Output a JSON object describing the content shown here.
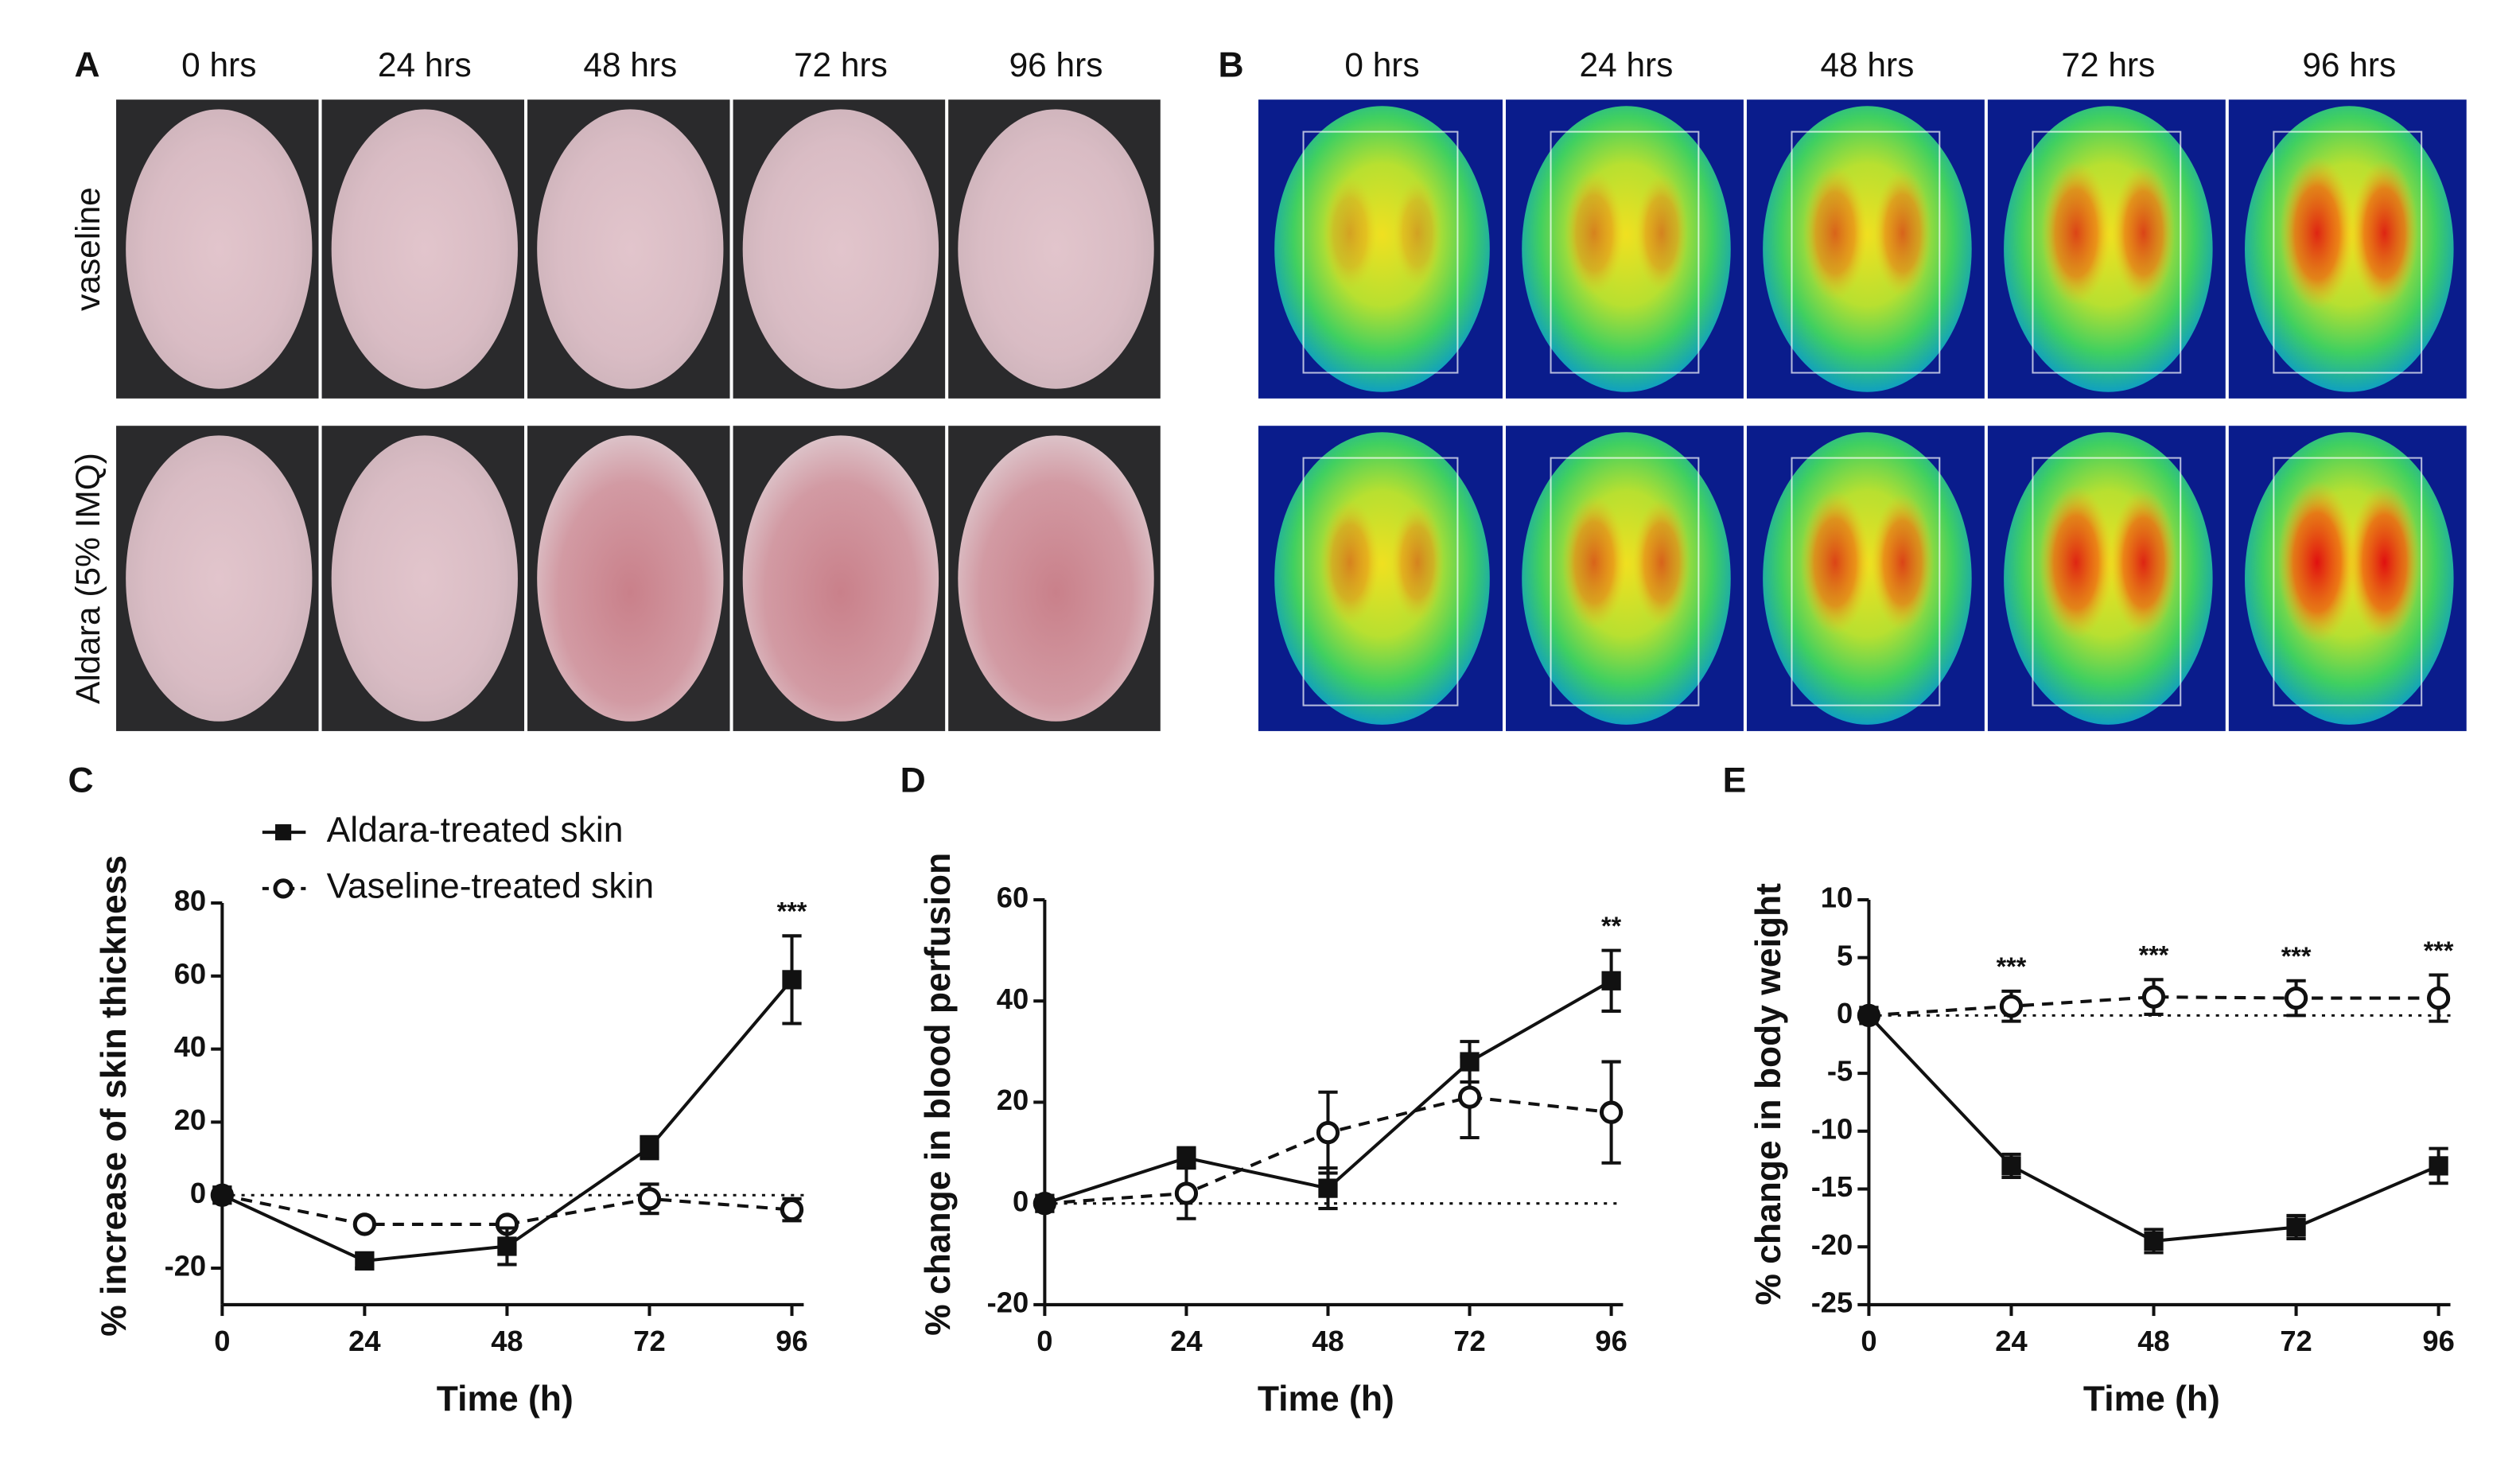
{
  "panel_a": {
    "label": "A",
    "columns": [
      "0 hrs",
      "24 hrs",
      "48 hrs",
      "72 hrs",
      "96 hrs"
    ],
    "rows": [
      "vaseline",
      "Aldara (5% IMQ)"
    ]
  },
  "panel_b": {
    "label": "B",
    "columns": [
      "0 hrs",
      "24 hrs",
      "48 hrs",
      "72 hrs",
      "96 hrs"
    ]
  },
  "chart_data": [
    {
      "type": "line",
      "panel": "C",
      "ylabel": "% increase of skin thickness",
      "xlabel": "Time (h)",
      "x": [
        0,
        24,
        48,
        72,
        96
      ],
      "xlim": [
        0,
        98
      ],
      "xticks": [
        0,
        24,
        48,
        72,
        96
      ],
      "ylim": [
        -30,
        80
      ],
      "yticks": [
        -20,
        0,
        20,
        40,
        60,
        80
      ],
      "zero_line": true,
      "legend": true,
      "series": [
        {
          "name": "Aldara-treated skin",
          "color": "#111111",
          "marker": "square",
          "dashed": false,
          "values": [
            0,
            -18,
            -14,
            13,
            59
          ],
          "errors": [
            0,
            2,
            5,
            3,
            12
          ]
        },
        {
          "name": "Vaseline-treated skin",
          "color": "#111111",
          "marker": "circle",
          "dashed": true,
          "values": [
            0,
            -8,
            -8,
            -1,
            -4
          ],
          "errors": [
            0,
            1,
            1,
            4,
            3
          ]
        }
      ],
      "annotations": [
        {
          "x": 96,
          "text": "***"
        }
      ]
    },
    {
      "type": "line",
      "panel": "D",
      "ylabel": "% change in blood perfusion",
      "xlabel": "Time (h)",
      "x": [
        0,
        24,
        48,
        72,
        96
      ],
      "xlim": [
        0,
        98
      ],
      "xticks": [
        0,
        24,
        48,
        72,
        96
      ],
      "ylim": [
        -20,
        60
      ],
      "yticks": [
        -20,
        0,
        20,
        40,
        60
      ],
      "zero_line": true,
      "legend": false,
      "series": [
        {
          "color": "#111111",
          "marker": "square",
          "dashed": false,
          "values": [
            0,
            9,
            3,
            28,
            44
          ],
          "errors": [
            0,
            2,
            4,
            4,
            6
          ]
        },
        {
          "color": "#111111",
          "marker": "circle",
          "dashed": true,
          "values": [
            0,
            2,
            14,
            21,
            18
          ],
          "errors": [
            0,
            5,
            8,
            8,
            10
          ]
        }
      ],
      "annotations": [
        {
          "x": 96,
          "text": "**"
        }
      ]
    },
    {
      "type": "line",
      "panel": "E",
      "ylabel": "% change in body weight",
      "xlabel": "Time (h)",
      "x": [
        0,
        24,
        48,
        72,
        96
      ],
      "xlim": [
        0,
        98
      ],
      "xticks": [
        0,
        24,
        48,
        72,
        96
      ],
      "ylim": [
        -25,
        10
      ],
      "yticks": [
        -25,
        -20,
        -15,
        -10,
        -5,
        0,
        5,
        10
      ],
      "zero_line": true,
      "legend": false,
      "series": [
        {
          "color": "#111111",
          "marker": "square",
          "dashed": false,
          "values": [
            0,
            -13,
            -19.5,
            -18.3,
            -13
          ],
          "errors": [
            0,
            1,
            1,
            1,
            1.5
          ]
        },
        {
          "color": "#111111",
          "marker": "circle",
          "dashed": true,
          "values": [
            0,
            0.8,
            1.6,
            1.5,
            1.5
          ],
          "errors": [
            0,
            1.3,
            1.5,
            1.5,
            2
          ]
        }
      ],
      "annotations": [
        {
          "x": 24,
          "text": "***"
        },
        {
          "x": 48,
          "text": "***"
        },
        {
          "x": 72,
          "text": "***"
        },
        {
          "x": 96,
          "text": "***"
        }
      ]
    }
  ]
}
